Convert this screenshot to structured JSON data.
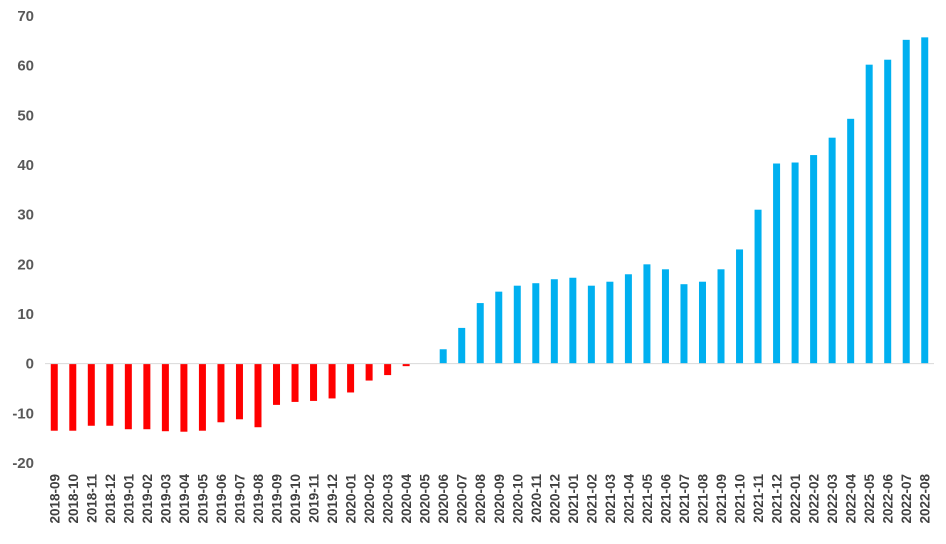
{
  "chart_data": {
    "type": "bar",
    "title": "",
    "xlabel": "",
    "ylabel": "",
    "ylim": [
      -20,
      70
    ],
    "yticks": [
      -20,
      -10,
      0,
      10,
      20,
      30,
      40,
      50,
      60,
      70
    ],
    "grid": false,
    "legend": "none",
    "colors": {
      "negative": "#ff0000",
      "positive": "#00b0f0",
      "axis": "#d9d9d9"
    },
    "categories": [
      "2018-09",
      "2018-10",
      "2018-11",
      "2018-12",
      "2019-01",
      "2019-02",
      "2019-03",
      "2019-04",
      "2019-05",
      "2019-06",
      "2019-07",
      "2019-08",
      "2019-09",
      "2019-10",
      "2019-11",
      "2019-12",
      "2020-01",
      "2020-02",
      "2020-03",
      "2020-04",
      "2020-05",
      "2020-06",
      "2020-07",
      "2020-08",
      "2020-09",
      "2020-10",
      "2020-11",
      "2020-12",
      "2021-01",
      "2021-02",
      "2021-03",
      "2021-04",
      "2021-05",
      "2021-06",
      "2021-07",
      "2021-08",
      "2021-09",
      "2021-10",
      "2021-11",
      "2021-12",
      "2022-01",
      "2022-02",
      "2022-03",
      "2022-04",
      "2022-05",
      "2022-06",
      "2022-07",
      "2022-08"
    ],
    "values": [
      -13.5,
      -13.5,
      -12.5,
      -12.5,
      -13.2,
      -13.2,
      -13.6,
      -13.7,
      -13.5,
      -11.8,
      -11.2,
      -12.8,
      -8.3,
      -7.7,
      -7.5,
      -7.0,
      -5.8,
      -3.4,
      -2.3,
      -0.5,
      0,
      2.9,
      7.2,
      12.2,
      14.5,
      15.7,
      16.2,
      17.0,
      17.3,
      15.7,
      16.5,
      18.0,
      20.0,
      19.0,
      16.0,
      16.5,
      19.0,
      23.0,
      31.0,
      40.3,
      40.5,
      42.0,
      45.5,
      49.3,
      60.2,
      61.2,
      65.2,
      65.7
    ]
  }
}
